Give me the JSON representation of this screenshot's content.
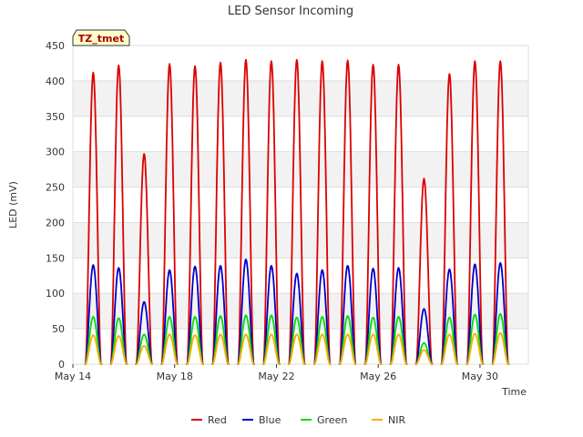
{
  "chart_data": {
    "type": "line",
    "title": "LED Sensor Incoming",
    "xlabel": "Time",
    "ylabel": "LED (mV)",
    "tag": "TZ_tmet",
    "x_domain": [
      14,
      31.9
    ],
    "ylim": [
      0,
      450
    ],
    "y_ticks": [
      0,
      50,
      100,
      150,
      200,
      250,
      300,
      350,
      400,
      450
    ],
    "x_ticks": [
      {
        "day": 14,
        "label": "May 14"
      },
      {
        "day": 18,
        "label": "May 18"
      },
      {
        "day": 22,
        "label": "May 22"
      },
      {
        "day": 26,
        "label": "May 26"
      },
      {
        "day": 30,
        "label": "May 30"
      }
    ],
    "x_unit": "day of May; daily peaks near solar noon",
    "daily_peak_days": [
      14.8,
      15.8,
      16.8,
      17.8,
      18.8,
      19.8,
      20.8,
      21.8,
      22.8,
      23.8,
      24.8,
      25.8,
      26.8,
      27.8,
      28.8,
      29.8,
      30.8
    ],
    "series": [
      {
        "name": "Red",
        "color": "#dd0000",
        "daily_peaks": [
          412,
          422,
          297,
          424,
          421,
          426,
          430,
          428,
          430,
          428,
          429,
          423,
          423,
          262,
          410,
          428,
          428
        ]
      },
      {
        "name": "Blue",
        "color": "#0000cc",
        "daily_peaks": [
          140,
          136,
          88,
          133,
          138,
          139,
          148,
          139,
          128,
          133,
          139,
          135,
          136,
          78,
          134,
          141,
          143
        ]
      },
      {
        "name": "Green",
        "color": "#00dd00",
        "daily_peaks": [
          67,
          65,
          42,
          67,
          67,
          68,
          69,
          69,
          66,
          67,
          68,
          66,
          67,
          30,
          66,
          70,
          71
        ]
      },
      {
        "name": "NIR",
        "color": "#ffaa00",
        "daily_peaks": [
          41,
          40,
          26,
          42,
          41,
          42,
          42,
          42,
          42,
          42,
          42,
          42,
          42,
          20,
          42,
          43,
          44
        ]
      }
    ],
    "grid": true,
    "legend": "bottom"
  }
}
